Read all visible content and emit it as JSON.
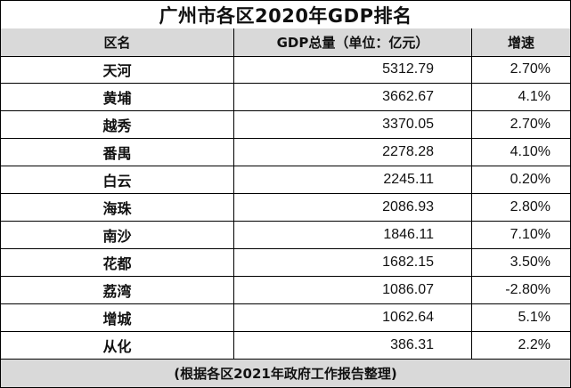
{
  "title": "广州市各区2020年GDP排名",
  "headers": {
    "district": "区名",
    "gdp": "GDP总量（单位：亿元）",
    "growth": "增速"
  },
  "rows": [
    {
      "district": "天河",
      "gdp": "5312.79",
      "growth": "2.70%"
    },
    {
      "district": "黄埔",
      "gdp": "3662.67",
      "growth": "4.1%"
    },
    {
      "district": "越秀",
      "gdp": "3370.05",
      "growth": "2.70%"
    },
    {
      "district": "番禺",
      "gdp": "2278.28",
      "growth": "4.10%"
    },
    {
      "district": "白云",
      "gdp": "2245.11",
      "growth": "0.20%"
    },
    {
      "district": "海珠",
      "gdp": "2086.93",
      "growth": "2.80%"
    },
    {
      "district": "南沙",
      "gdp": "1846.11",
      "growth": "7.10%"
    },
    {
      "district": "花都",
      "gdp": "1682.15",
      "growth": "3.50%"
    },
    {
      "district": "荔湾",
      "gdp": "1086.07",
      "growth": "-2.80%"
    },
    {
      "district": "增城",
      "gdp": "1062.64",
      "growth": "5.1%"
    },
    {
      "district": "从化",
      "gdp": "386.31",
      "growth": "2.2%"
    }
  ],
  "footer": "(根据各区2021年政府工作报告整理)"
}
